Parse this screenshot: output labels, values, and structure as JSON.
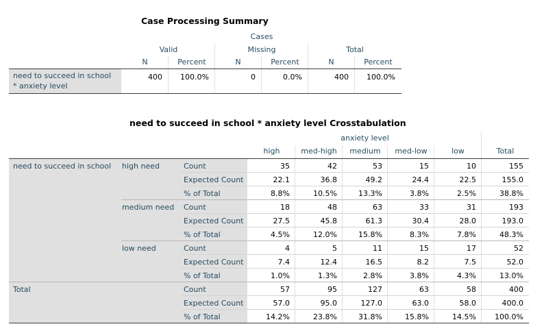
{
  "case_summary": {
    "title": "Case Processing Summary",
    "cases_label": "Cases",
    "groups": [
      "Valid",
      "Missing",
      "Total"
    ],
    "n_label": "N",
    "percent_label": "Percent",
    "row_label_line1": "need to succeed in school",
    "row_label_line2": "* anxiety level",
    "values": [
      "400",
      "100.0%",
      "0",
      "0.0%",
      "400",
      "100.0%"
    ]
  },
  "crosstab": {
    "title": "need to succeed in school * anxiety level Crosstabulation",
    "column_group_label": "anxiety level",
    "columns": [
      "high",
      "med-high",
      "medium",
      "med-low",
      "low",
      "Total"
    ],
    "row_variable": "need to succeed in school",
    "total_label": "Total",
    "groups": [
      {
        "label": "high need",
        "rows": [
          {
            "stat": "Count",
            "values": [
              "35",
              "42",
              "53",
              "15",
              "10",
              "155"
            ]
          },
          {
            "stat": "Expected Count",
            "values": [
              "22.1",
              "36.8",
              "49.2",
              "24.4",
              "22.5",
              "155.0"
            ]
          },
          {
            "stat": "% of Total",
            "values": [
              "8.8%",
              "10.5%",
              "13.3%",
              "3.8%",
              "2.5%",
              "38.8%"
            ]
          }
        ]
      },
      {
        "label": "medium need",
        "rows": [
          {
            "stat": "Count",
            "values": [
              "18",
              "48",
              "63",
              "33",
              "31",
              "193"
            ]
          },
          {
            "stat": "Expected Count",
            "values": [
              "27.5",
              "45.8",
              "61.3",
              "30.4",
              "28.0",
              "193.0"
            ]
          },
          {
            "stat": "% of Total",
            "values": [
              "4.5%",
              "12.0%",
              "15.8%",
              "8.3%",
              "7.8%",
              "48.3%"
            ]
          }
        ]
      },
      {
        "label": "low need",
        "rows": [
          {
            "stat": "Count",
            "values": [
              "4",
              "5",
              "11",
              "15",
              "17",
              "52"
            ]
          },
          {
            "stat": "Expected Count",
            "values": [
              "7.4",
              "12.4",
              "16.5",
              "8.2",
              "7.5",
              "52.0"
            ]
          },
          {
            "stat": "% of Total",
            "values": [
              "1.0%",
              "1.3%",
              "2.8%",
              "3.8%",
              "4.3%",
              "13.0%"
            ]
          }
        ]
      },
      {
        "label": "Total",
        "rows": [
          {
            "stat": "Count",
            "values": [
              "57",
              "95",
              "127",
              "63",
              "58",
              "400"
            ]
          },
          {
            "stat": "Expected Count",
            "values": [
              "57.0",
              "95.0",
              "127.0",
              "63.0",
              "58.0",
              "400.0"
            ]
          },
          {
            "stat": "% of Total",
            "values": [
              "14.2%",
              "23.8%",
              "31.8%",
              "15.8%",
              "14.5%",
              "100.0%"
            ]
          }
        ]
      }
    ]
  }
}
